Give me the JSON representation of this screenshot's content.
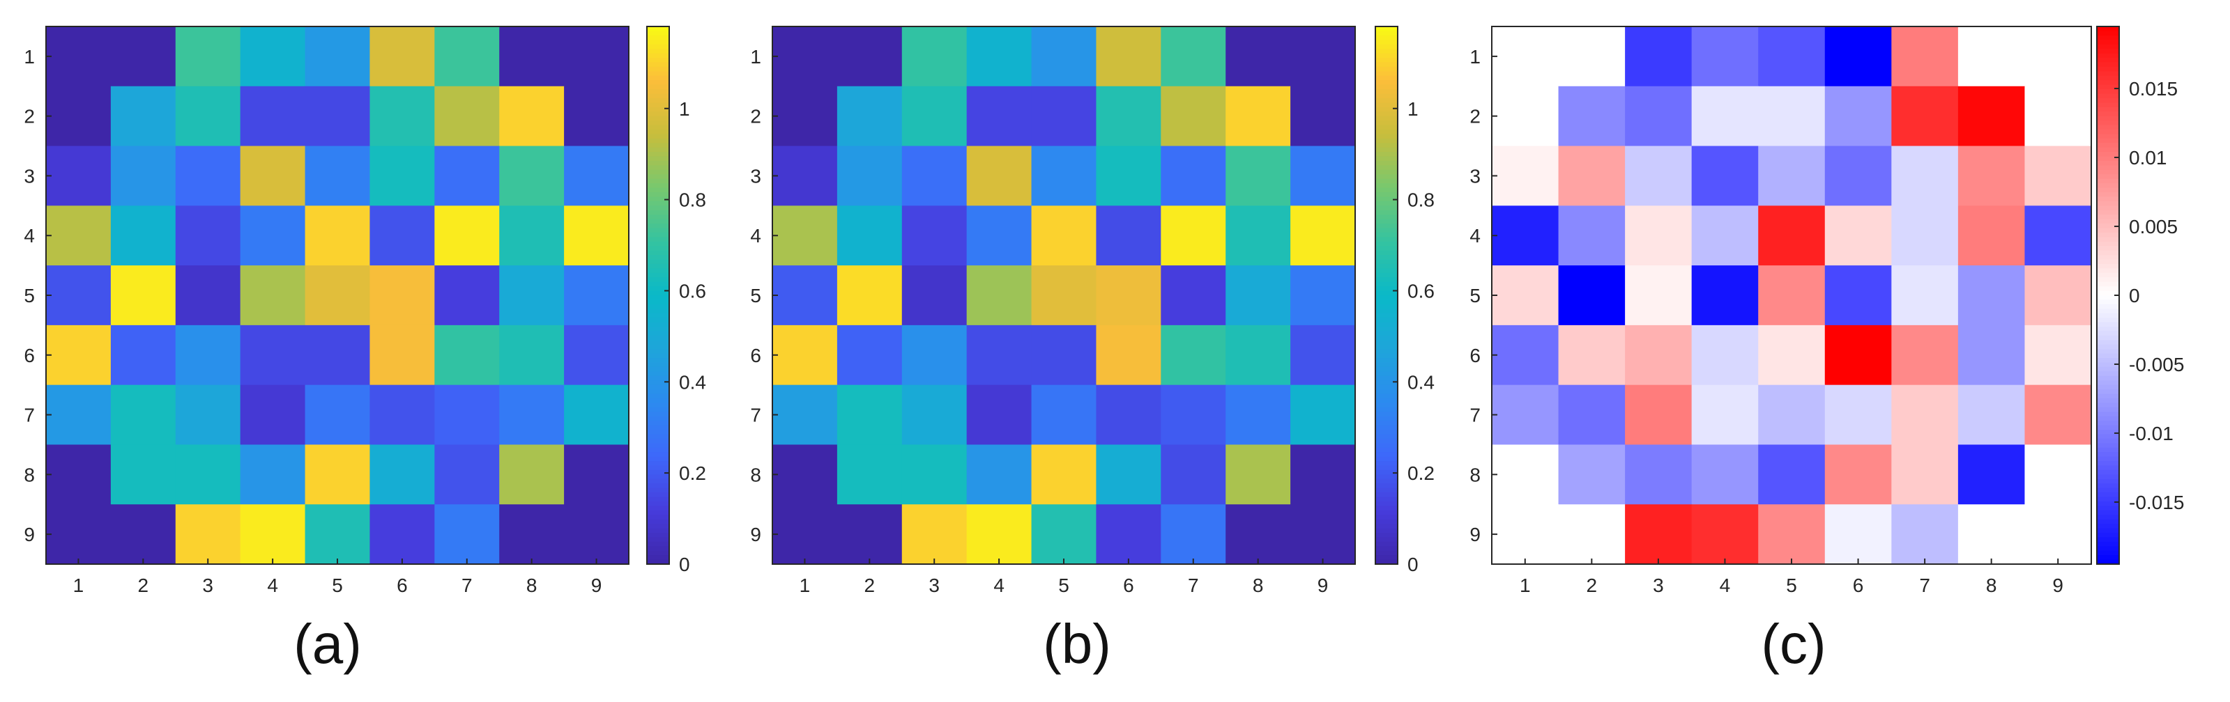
{
  "chart_data": [
    {
      "type": "heatmap",
      "caption": "(a)",
      "colormap": "parula",
      "x": [
        1,
        2,
        3,
        4,
        5,
        6,
        7,
        8,
        9
      ],
      "y": [
        1,
        2,
        3,
        4,
        5,
        6,
        7,
        8,
        9
      ],
      "xticklabels": [
        "1",
        "2",
        "3",
        "4",
        "5",
        "6",
        "7",
        "8",
        "9"
      ],
      "yticklabels": [
        "1",
        "2",
        "3",
        "4",
        "5",
        "6",
        "7",
        "8",
        "9"
      ],
      "values": [
        [
          0.0,
          0.0,
          0.72,
          0.55,
          0.42,
          0.98,
          0.72,
          0.0,
          0.0
        ],
        [
          0.0,
          0.48,
          0.65,
          0.15,
          0.15,
          0.66,
          0.92,
          1.1,
          0.0
        ],
        [
          0.1,
          0.4,
          0.25,
          0.98,
          0.32,
          0.62,
          0.26,
          0.72,
          0.3
        ],
        [
          0.92,
          0.55,
          0.15,
          0.3,
          1.1,
          0.18,
          1.15,
          0.65,
          1.15
        ],
        [
          0.18,
          1.15,
          0.08,
          0.9,
          1.0,
          1.05,
          0.12,
          0.5,
          0.3
        ],
        [
          1.1,
          0.22,
          0.38,
          0.15,
          0.15,
          1.05,
          0.7,
          0.65,
          0.18
        ],
        [
          0.42,
          0.62,
          0.48,
          0.1,
          0.28,
          0.18,
          0.22,
          0.3,
          0.55
        ],
        [
          0.0,
          0.62,
          0.62,
          0.4,
          1.1,
          0.52,
          0.18,
          0.9,
          0.0
        ],
        [
          0.0,
          0.0,
          1.1,
          1.15,
          0.65,
          0.12,
          0.3,
          0.0,
          0.0
        ]
      ],
      "colorbar": {
        "range": [
          0,
          1.18
        ],
        "ticks": [
          0,
          0.2,
          0.4,
          0.6,
          0.8,
          1
        ],
        "ticklabels": [
          "0",
          "0.2",
          "0.4",
          "0.6",
          "0.8",
          "1"
        ]
      }
    },
    {
      "type": "heatmap",
      "caption": "(b)",
      "colormap": "parula",
      "x": [
        1,
        2,
        3,
        4,
        5,
        6,
        7,
        8,
        9
      ],
      "y": [
        1,
        2,
        3,
        4,
        5,
        6,
        7,
        8,
        9
      ],
      "xticklabels": [
        "1",
        "2",
        "3",
        "4",
        "5",
        "6",
        "7",
        "8",
        "9"
      ],
      "yticklabels": [
        "1",
        "2",
        "3",
        "4",
        "5",
        "6",
        "7",
        "8",
        "9"
      ],
      "values": [
        [
          0.0,
          0.0,
          0.7,
          0.55,
          0.4,
          0.96,
          0.72,
          0.0,
          0.0
        ],
        [
          0.0,
          0.48,
          0.65,
          0.14,
          0.14,
          0.66,
          0.93,
          1.1,
          0.0
        ],
        [
          0.09,
          0.42,
          0.26,
          0.98,
          0.35,
          0.62,
          0.26,
          0.72,
          0.3
        ],
        [
          0.9,
          0.55,
          0.14,
          0.3,
          1.1,
          0.16,
          1.15,
          0.65,
          1.15
        ],
        [
          0.2,
          1.12,
          0.08,
          0.88,
          1.0,
          1.03,
          0.12,
          0.5,
          0.3
        ],
        [
          1.1,
          0.22,
          0.38,
          0.16,
          0.16,
          1.05,
          0.7,
          0.65,
          0.18
        ],
        [
          0.44,
          0.62,
          0.5,
          0.1,
          0.28,
          0.16,
          0.2,
          0.3,
          0.55
        ],
        [
          0.0,
          0.62,
          0.62,
          0.4,
          1.1,
          0.52,
          0.16,
          0.9,
          0.0
        ],
        [
          0.0,
          0.0,
          1.1,
          1.15,
          0.66,
          0.12,
          0.28,
          0.0,
          0.0
        ]
      ],
      "colorbar": {
        "range": [
          0,
          1.18
        ],
        "ticks": [
          0,
          0.2,
          0.4,
          0.6,
          0.8,
          1
        ],
        "ticklabels": [
          "0",
          "0.2",
          "0.4",
          "0.6",
          "0.8",
          "1"
        ]
      }
    },
    {
      "type": "heatmap",
      "caption": "(c)",
      "colormap": "blue-white-red diverging",
      "x": [
        1,
        2,
        3,
        4,
        5,
        6,
        7,
        8,
        9
      ],
      "y": [
        1,
        2,
        3,
        4,
        5,
        6,
        7,
        8,
        9
      ],
      "xticklabels": [
        "1",
        "2",
        "3",
        "4",
        "5",
        "6",
        "7",
        "8",
        "9"
      ],
      "yticklabels": [
        "1",
        "2",
        "3",
        "4",
        "5",
        "6",
        "7",
        "8",
        "9"
      ],
      "values": [
        [
          0.0,
          0.0,
          -0.015,
          -0.011,
          -0.013,
          -0.02,
          0.01,
          0.0,
          0.0
        ],
        [
          0.0,
          -0.009,
          -0.011,
          -0.002,
          -0.002,
          -0.008,
          0.016,
          0.019,
          0.0
        ],
        [
          0.001,
          0.007,
          -0.004,
          -0.013,
          -0.006,
          -0.011,
          -0.003,
          0.009,
          0.004
        ],
        [
          -0.017,
          -0.009,
          0.002,
          -0.005,
          0.017,
          0.003,
          -0.003,
          0.01,
          -0.014
        ],
        [
          0.003,
          -0.02,
          0.001,
          -0.018,
          0.009,
          -0.014,
          -0.002,
          -0.008,
          0.005
        ],
        [
          -0.011,
          0.004,
          0.006,
          -0.003,
          0.002,
          0.02,
          0.009,
          -0.008,
          0.002
        ],
        [
          -0.008,
          -0.011,
          0.01,
          -0.002,
          -0.005,
          -0.003,
          0.004,
          -0.004,
          0.009
        ],
        [
          0.0,
          -0.007,
          -0.01,
          -0.008,
          -0.013,
          0.009,
          0.004,
          -0.017,
          0.0
        ],
        [
          0.0,
          0.0,
          0.017,
          0.016,
          0.009,
          -0.001,
          -0.005,
          0.0,
          0.0
        ]
      ],
      "colorbar": {
        "range": [
          -0.0195,
          0.0195
        ],
        "ticks": [
          -0.015,
          -0.01,
          -0.005,
          0,
          0.005,
          0.01,
          0.015
        ],
        "ticklabels": [
          "-0.015",
          "-0.01",
          "-0.005",
          "0",
          "0.005",
          "0.01",
          "0.015"
        ]
      }
    }
  ]
}
